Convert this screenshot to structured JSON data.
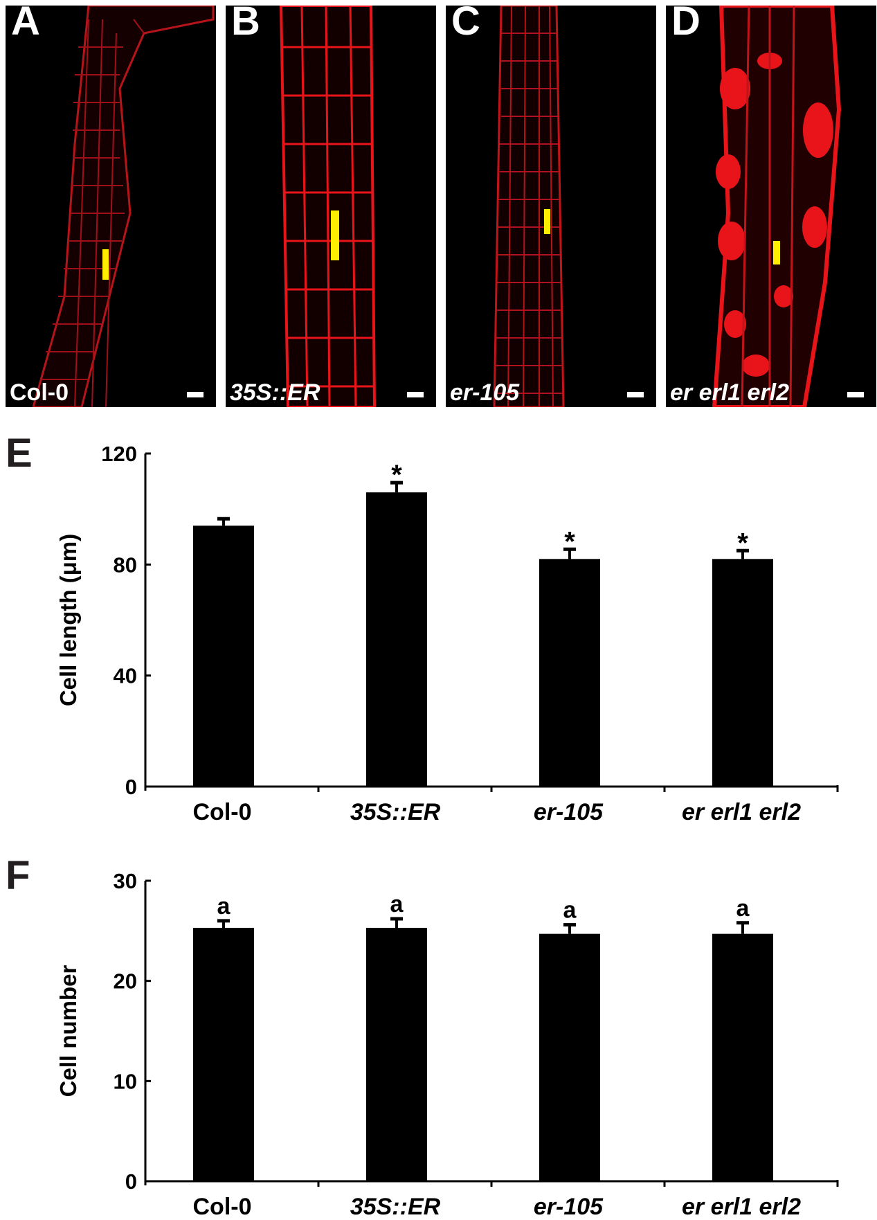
{
  "panels": [
    {
      "letter": "A",
      "label": "Col-0",
      "italic": false
    },
    {
      "letter": "B",
      "label": "35S::ER",
      "italic": true
    },
    {
      "letter": "C",
      "label": "er-105",
      "italic": true
    },
    {
      "letter": "D",
      "label": "er erl1 erl2",
      "italic": true
    }
  ],
  "colors": {
    "stain": "#e8141a",
    "marker": "#ffee00",
    "bar": "#000000"
  },
  "chart_data": [
    {
      "panel": "E",
      "type": "bar",
      "categories": [
        "Col-0",
        "35S::ER",
        "er-105",
        "er erl1 erl2"
      ],
      "category_italic": [
        false,
        true,
        true,
        true
      ],
      "values": [
        94,
        106,
        82,
        82
      ],
      "errors": [
        2.5,
        3.5,
        3.5,
        3
      ],
      "annotations": [
        "",
        "*",
        "*",
        "*"
      ],
      "ylabel": "Cell  length (μm)",
      "ylim": [
        0,
        120
      ],
      "yticks": [
        0,
        40,
        80,
        120
      ]
    },
    {
      "panel": "F",
      "type": "bar",
      "categories": [
        "Col-0",
        "35S::ER",
        "er-105",
        "er erl1 erl2"
      ],
      "category_italic": [
        false,
        true,
        true,
        true
      ],
      "values": [
        25.3,
        25.3,
        24.7,
        24.7
      ],
      "errors": [
        0.7,
        0.9,
        0.9,
        1.1
      ],
      "annotations": [
        "a",
        "a",
        "a",
        "a"
      ],
      "ylabel": "Cell  number",
      "ylim": [
        0,
        30
      ],
      "yticks": [
        0,
        10,
        20,
        30
      ]
    }
  ]
}
